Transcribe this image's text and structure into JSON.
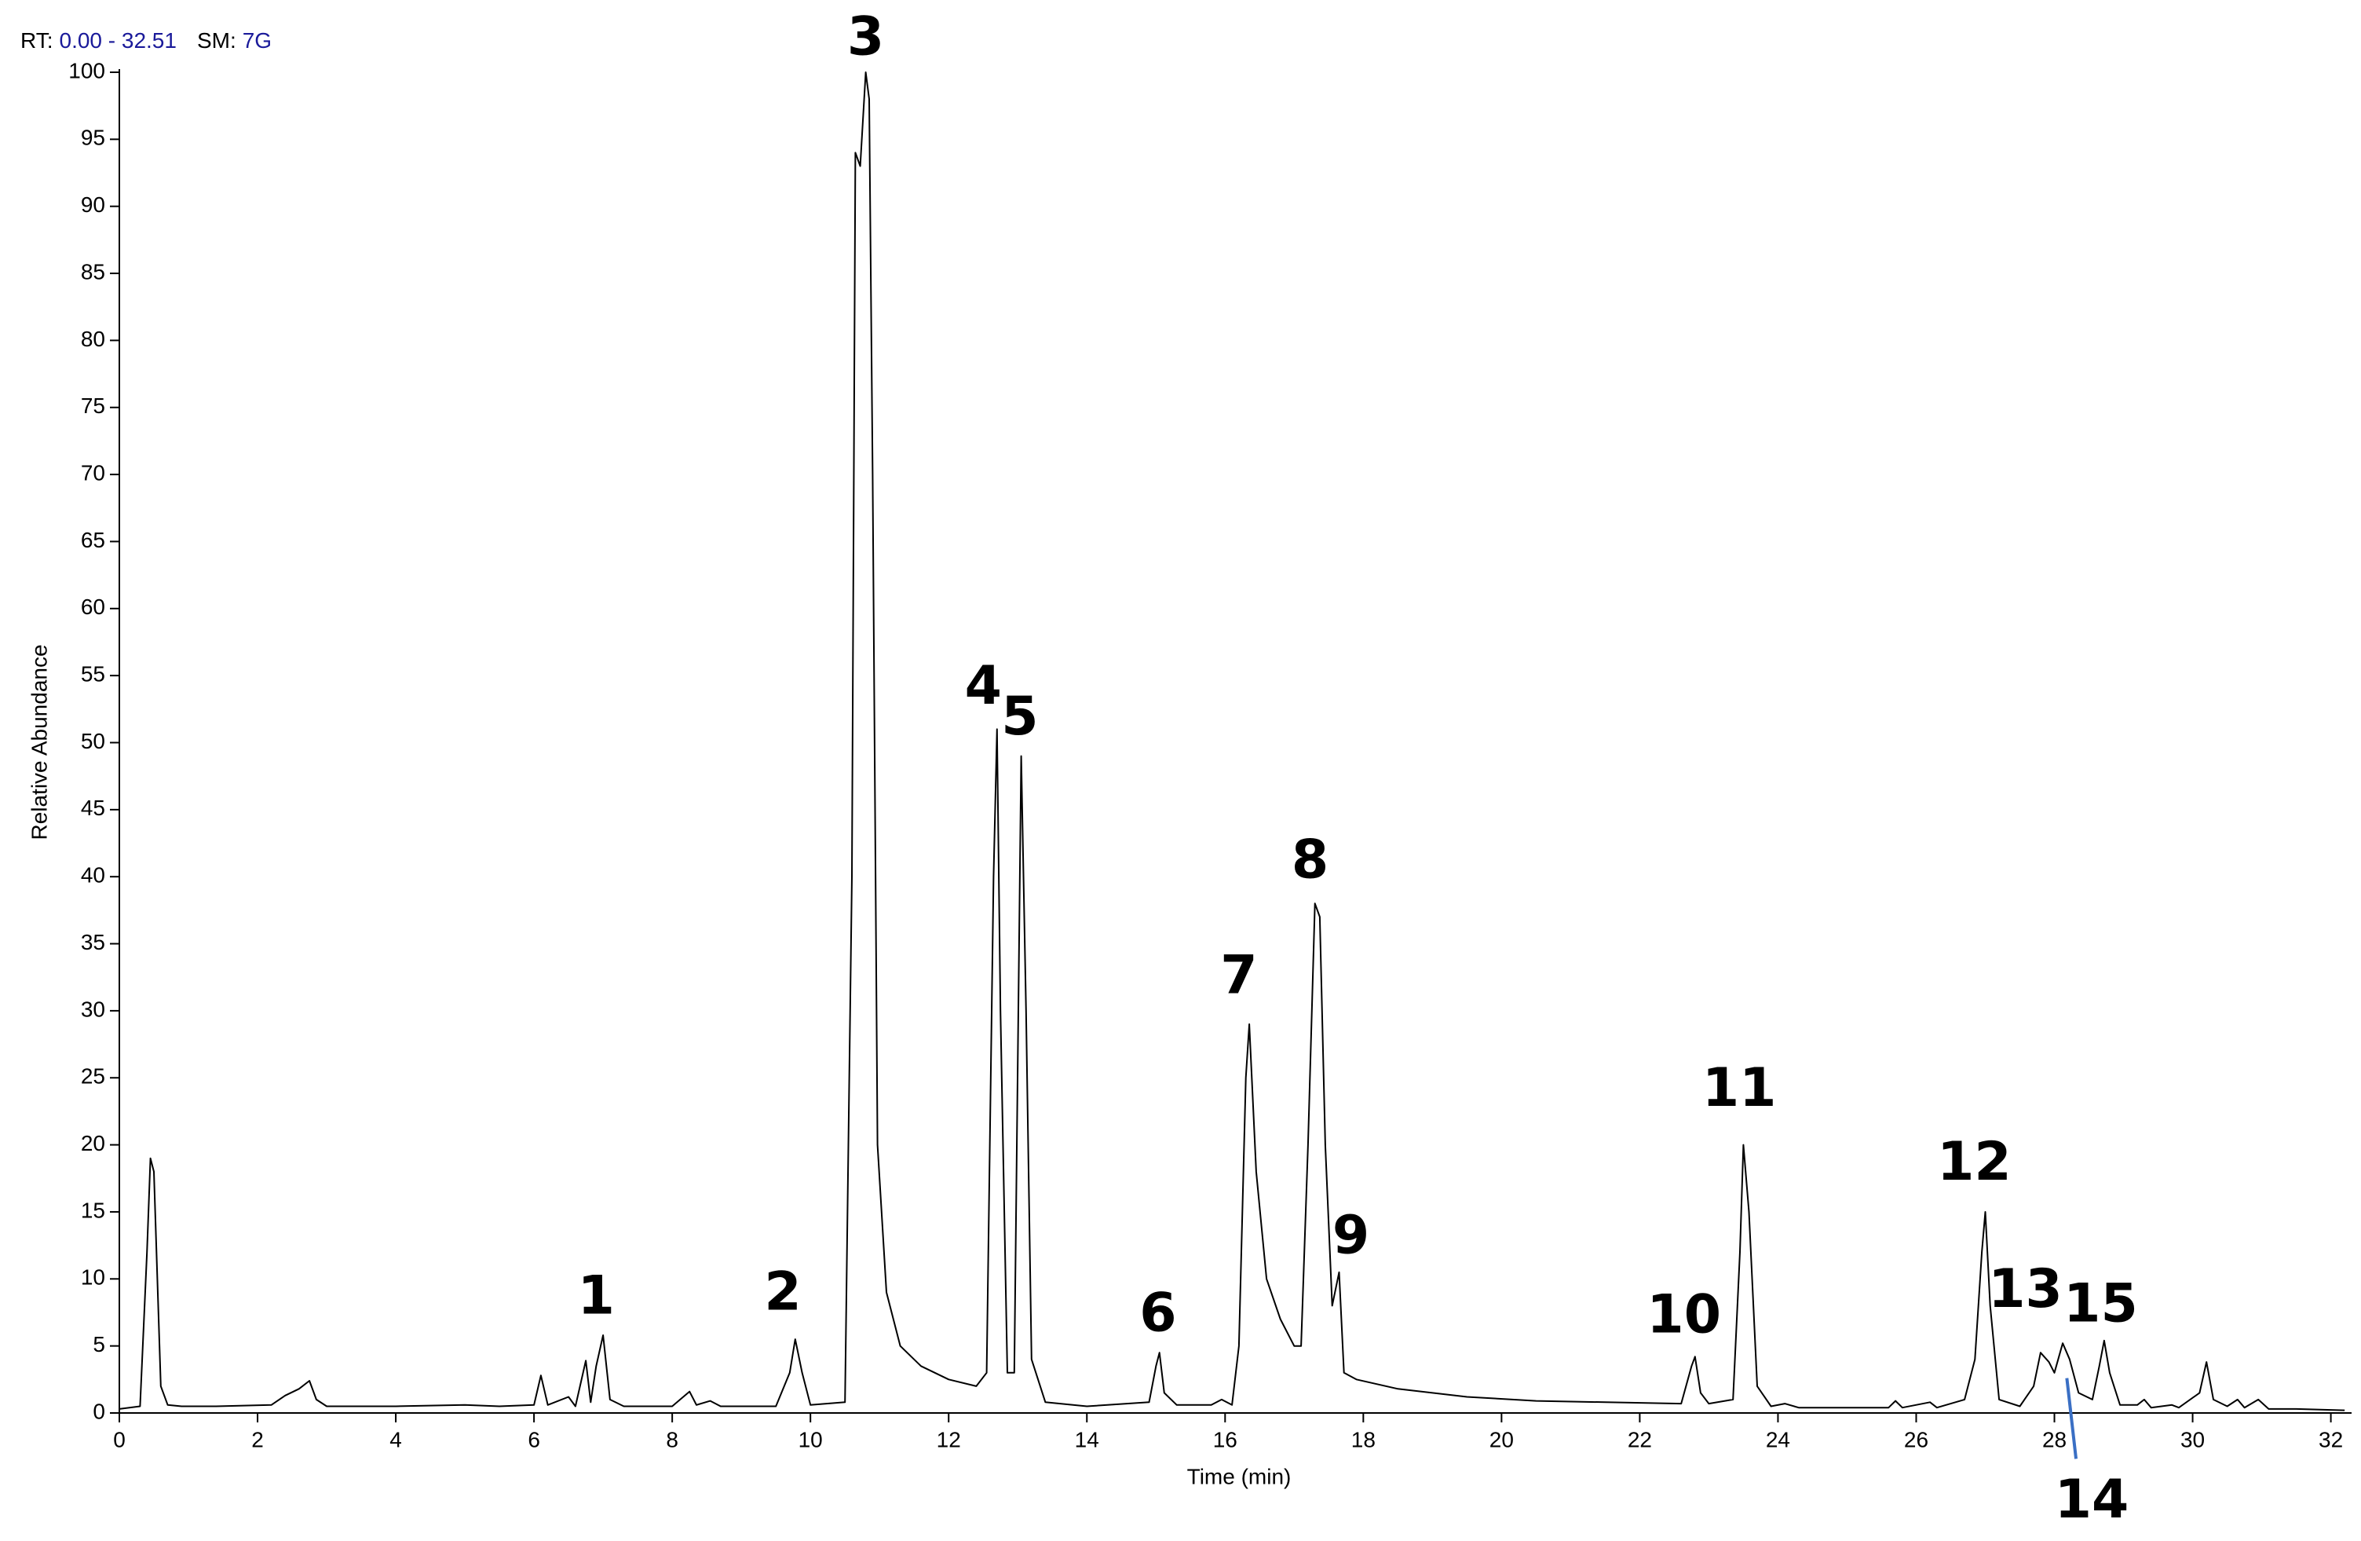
{
  "header": {
    "rt_label": "RT:",
    "rt_range": "0.00 - 32.51",
    "sm_label": "SM:",
    "sm_value": "7G"
  },
  "chart_data": {
    "type": "line",
    "x_label": "Time (min)",
    "y_label": "Relative Abundance",
    "color": "#000000",
    "xlim": [
      0,
      32.3
    ],
    "ylim": [
      0,
      100
    ],
    "xticks": [
      0,
      2,
      4,
      6,
      8,
      10,
      12,
      14,
      16,
      18,
      20,
      22,
      24,
      26,
      28,
      30,
      32
    ],
    "yticks": [
      0,
      5,
      10,
      15,
      20,
      25,
      30,
      35,
      40,
      45,
      50,
      55,
      60,
      65,
      70,
      75,
      80,
      85,
      90,
      95,
      100
    ],
    "x": [
      0,
      0.3,
      0.4,
      0.45,
      0.5,
      0.55,
      0.6,
      0.7,
      0.9,
      1.4,
      2.2,
      2.4,
      2.6,
      2.75,
      2.85,
      3.0,
      4.0,
      5.0,
      5.5,
      6.0,
      6.1,
      6.2,
      6.5,
      6.6,
      6.75,
      6.82,
      6.9,
      7.0,
      7.1,
      7.3,
      8.0,
      8.25,
      8.35,
      8.55,
      8.7,
      9.5,
      9.7,
      9.78,
      9.88,
      10.0,
      10.5,
      10.6,
      10.65,
      10.72,
      10.8,
      10.85,
      10.9,
      10.97,
      11.1,
      11.3,
      11.6,
      12.0,
      12.4,
      12.55,
      12.65,
      12.7,
      12.75,
      12.85,
      12.95,
      13.05,
      13.12,
      13.2,
      13.4,
      14.0,
      14.9,
      15.0,
      15.05,
      15.12,
      15.3,
      15.8,
      15.95,
      16.1,
      16.2,
      16.3,
      16.35,
      16.45,
      16.6,
      16.8,
      17.0,
      17.1,
      17.2,
      17.3,
      17.37,
      17.45,
      17.55,
      17.65,
      17.72,
      17.9,
      18.5,
      19.5,
      20.5,
      21.5,
      22.6,
      22.75,
      22.8,
      22.88,
      23.0,
      23.35,
      23.45,
      23.5,
      23.58,
      23.7,
      23.9,
      24.1,
      24.3,
      25.6,
      25.7,
      25.8,
      26.2,
      26.3,
      26.7,
      26.85,
      26.95,
      27.0,
      27.07,
      27.2,
      27.5,
      27.7,
      27.8,
      27.92,
      28.0,
      28.12,
      28.22,
      28.35,
      28.55,
      28.65,
      28.72,
      28.8,
      28.95,
      29.2,
      29.3,
      29.4,
      29.7,
      29.8,
      30.1,
      30.2,
      30.3,
      30.5,
      30.65,
      30.75,
      30.95,
      31.1,
      31.5,
      32.2
    ],
    "values": [
      0.3,
      0.5,
      12,
      19,
      18,
      10,
      2,
      0.6,
      0.5,
      0.5,
      0.6,
      1.3,
      1.8,
      2.4,
      1,
      0.5,
      0.5,
      0.6,
      0.5,
      0.6,
      2.8,
      0.6,
      1.2,
      0.5,
      3.9,
      0.8,
      3.5,
      5.8,
      1,
      0.5,
      0.5,
      1.6,
      0.6,
      0.9,
      0.5,
      0.5,
      3,
      5.5,
      3,
      0.6,
      0.8,
      40,
      94,
      93,
      100,
      98,
      70,
      20,
      9,
      5,
      3.5,
      2.5,
      2,
      3,
      40,
      51,
      30,
      3,
      3,
      49,
      30,
      4,
      0.8,
      0.5,
      0.8,
      3.5,
      4.5,
      1.5,
      0.6,
      0.6,
      1,
      0.6,
      5,
      25,
      29,
      18,
      10,
      7,
      5,
      5,
      20,
      38,
      37,
      20,
      8,
      10.5,
      3,
      2.5,
      1.8,
      1.2,
      0.9,
      0.8,
      0.7,
      3.5,
      4.2,
      1.5,
      0.7,
      1,
      12,
      20,
      15,
      2,
      0.5,
      0.7,
      0.4,
      0.4,
      0.9,
      0.4,
      0.8,
      0.4,
      1,
      4,
      12,
      15,
      8,
      1,
      0.5,
      2,
      4.5,
      3.8,
      3,
      5.2,
      4,
      1.5,
      1,
      3.5,
      5.4,
      3,
      0.6,
      0.6,
      1,
      0.4,
      0.6,
      0.4,
      1.5,
      3.8,
      1,
      0.5,
      1,
      0.4,
      1,
      0.3,
      0.3,
      0.2
    ],
    "annotations": [
      {
        "text": "1",
        "x": 6.9,
        "y": 8.5
      },
      {
        "text": "2",
        "x": 9.6,
        "y": 8.8
      },
      {
        "text": "3",
        "x": 10.8,
        "y": 102.4
      },
      {
        "text": "4",
        "x": 12.5,
        "y": 54
      },
      {
        "text": "5",
        "x": 13.03,
        "y": 51.7
      },
      {
        "text": "6",
        "x": 15.03,
        "y": 7.2
      },
      {
        "text": "7",
        "x": 16.2,
        "y": 32.4
      },
      {
        "text": "8",
        "x": 17.23,
        "y": 41
      },
      {
        "text": "9",
        "x": 17.82,
        "y": 13
      },
      {
        "text": "10",
        "x": 22.64,
        "y": 7.1
      },
      {
        "text": "11",
        "x": 23.44,
        "y": 24
      },
      {
        "text": "12",
        "x": 26.84,
        "y": 18.5
      },
      {
        "text": "13",
        "x": 27.58,
        "y": 9
      },
      {
        "text": "14",
        "x": 28.54,
        "y": -6.7,
        "points_to": {
          "x": 28.18,
          "y": 2.6
        }
      },
      {
        "text": "15",
        "x": 28.67,
        "y": 7.9
      }
    ]
  }
}
